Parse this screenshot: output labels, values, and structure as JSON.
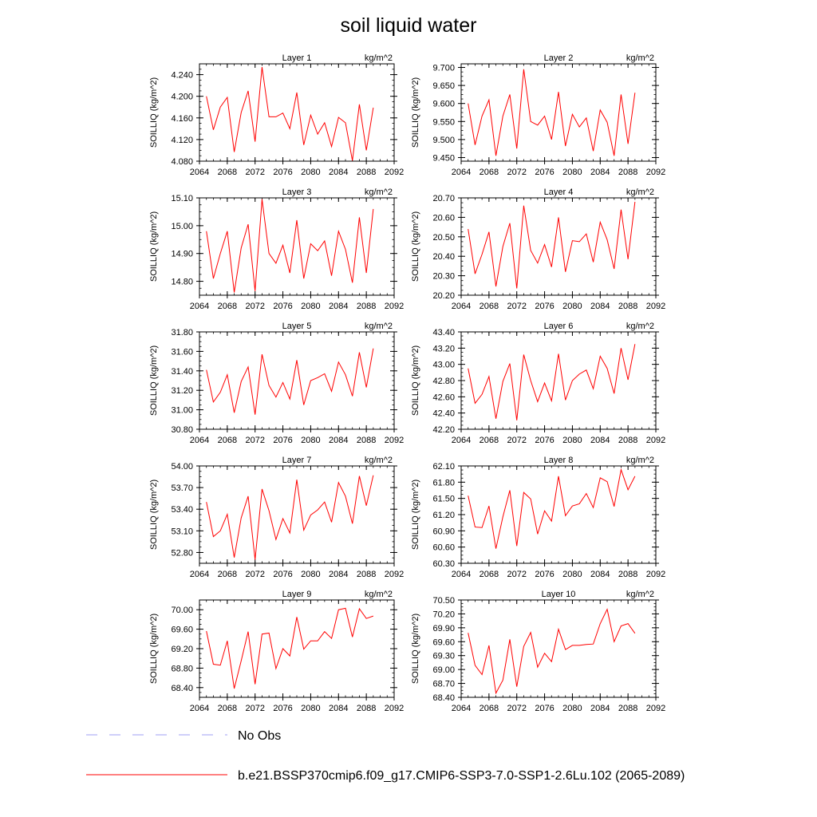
{
  "figure": {
    "title": "soil liquid water",
    "colors": {
      "model": "#ff0000",
      "obs": "#9f9ff5",
      "axis": "#000000"
    }
  },
  "legend": {
    "obs_label": "No Obs",
    "model_label": "b.e21.BSSP370cmip6.f09_g17.CMIP6-SSP3-7.0-SSP1-2.6Lu.102 (2065-2089)"
  },
  "chart_data": [
    {
      "type": "line",
      "title": "Layer 1",
      "units": "kg/m^2",
      "ylabel": "SOILLIQ  (kg/m^2)",
      "xlim": [
        2064,
        2092
      ],
      "x_ticks": [
        "2064",
        "2068",
        "2072",
        "2076",
        "2080",
        "2084",
        "2088",
        "2092"
      ],
      "ylim": [
        4.08,
        4.26
      ],
      "y_ticks": [
        "4.080",
        "4.120",
        "4.160",
        "4.200",
        "4.240"
      ],
      "series": [
        {
          "x": [
            2065,
            2066,
            2067,
            2068,
            2069,
            2070,
            2071,
            2072,
            2073,
            2074,
            2075,
            2076,
            2077,
            2078,
            2079,
            2080,
            2081,
            2082,
            2083,
            2084,
            2085,
            2086,
            2087,
            2088,
            2089
          ],
          "values": [
            4.2,
            4.138,
            4.18,
            4.198,
            4.097,
            4.17,
            4.21,
            4.116,
            4.254,
            4.162,
            4.162,
            4.169,
            4.14,
            4.207,
            4.11,
            4.165,
            4.13,
            4.151,
            4.107,
            4.161,
            4.151,
            4.081,
            4.185,
            4.1,
            4.179
          ]
        }
      ]
    },
    {
      "type": "line",
      "title": "Layer 2",
      "units": "kg/m^2",
      "ylabel": "SOILLIQ  (kg/m^2)",
      "xlim": [
        2064,
        2092
      ],
      "x_ticks": [
        "2064",
        "2068",
        "2072",
        "2076",
        "2080",
        "2084",
        "2088",
        "2092"
      ],
      "ylim": [
        9.44,
        9.71
      ],
      "y_ticks": [
        "9.450",
        "9.500",
        "9.550",
        "9.600",
        "9.650",
        "9.700"
      ],
      "series": [
        {
          "x": [
            2065,
            2066,
            2067,
            2068,
            2069,
            2070,
            2071,
            2072,
            2073,
            2074,
            2075,
            2076,
            2077,
            2078,
            2079,
            2080,
            2081,
            2082,
            2083,
            2084,
            2085,
            2086,
            2087,
            2088,
            2089
          ],
          "values": [
            9.6,
            9.485,
            9.565,
            9.61,
            9.455,
            9.565,
            9.625,
            9.475,
            9.695,
            9.55,
            9.54,
            9.565,
            9.5,
            9.632,
            9.482,
            9.57,
            9.535,
            9.56,
            9.468,
            9.582,
            9.548,
            9.455,
            9.625,
            9.488,
            9.63
          ]
        }
      ]
    },
    {
      "type": "line",
      "title": "Layer 3",
      "units": "kg/m^2",
      "ylabel": "SOILLIQ  (kg/m^2)",
      "xlim": [
        2064,
        2092
      ],
      "x_ticks": [
        "2064",
        "2068",
        "2072",
        "2076",
        "2080",
        "2084",
        "2088",
        "2092"
      ],
      "ylim": [
        14.75,
        15.1
      ],
      "y_ticks": [
        "14.80",
        "14.90",
        "15.00",
        "15.10"
      ],
      "series": [
        {
          "x": [
            2065,
            2066,
            2067,
            2068,
            2069,
            2070,
            2071,
            2072,
            2073,
            2074,
            2075,
            2076,
            2077,
            2078,
            2079,
            2080,
            2081,
            2082,
            2083,
            2084,
            2085,
            2086,
            2087,
            2088,
            2089
          ],
          "values": [
            14.98,
            14.81,
            14.9,
            14.98,
            14.76,
            14.92,
            15.005,
            14.765,
            15.095,
            14.9,
            14.865,
            14.93,
            14.83,
            15.02,
            14.81,
            14.935,
            14.91,
            14.945,
            14.82,
            14.98,
            14.915,
            14.795,
            15.03,
            14.83,
            15.06
          ]
        }
      ]
    },
    {
      "type": "line",
      "title": "Layer 4",
      "units": "kg/m^2",
      "ylabel": "SOILLIQ  (kg/m^2)",
      "xlim": [
        2064,
        2092
      ],
      "x_ticks": [
        "2064",
        "2068",
        "2072",
        "2076",
        "2080",
        "2084",
        "2088",
        "2092"
      ],
      "ylim": [
        20.2,
        20.7
      ],
      "y_ticks": [
        "20.20",
        "20.30",
        "20.40",
        "20.50",
        "20.60",
        "20.70"
      ],
      "series": [
        {
          "x": [
            2065,
            2066,
            2067,
            2068,
            2069,
            2070,
            2071,
            2072,
            2073,
            2074,
            2075,
            2076,
            2077,
            2078,
            2079,
            2080,
            2081,
            2082,
            2083,
            2084,
            2085,
            2086,
            2087,
            2088,
            2089
          ],
          "values": [
            20.54,
            20.31,
            20.41,
            20.525,
            20.245,
            20.45,
            20.57,
            20.235,
            20.66,
            20.43,
            20.365,
            20.46,
            20.345,
            20.6,
            20.32,
            20.48,
            20.475,
            20.515,
            20.37,
            20.575,
            20.485,
            20.335,
            20.64,
            20.385,
            20.68
          ]
        }
      ]
    },
    {
      "type": "line",
      "title": "Layer 5",
      "units": "kg/m^2",
      "ylabel": "SOILLIQ  (kg/m^2)",
      "xlim": [
        2064,
        2092
      ],
      "x_ticks": [
        "2064",
        "2068",
        "2072",
        "2076",
        "2080",
        "2084",
        "2088",
        "2092"
      ],
      "ylim": [
        30.8,
        31.8
      ],
      "y_ticks": [
        "30.80",
        "31.00",
        "31.20",
        "31.40",
        "31.60",
        "31.80"
      ],
      "series": [
        {
          "x": [
            2065,
            2066,
            2067,
            2068,
            2069,
            2070,
            2071,
            2072,
            2073,
            2074,
            2075,
            2076,
            2077,
            2078,
            2079,
            2080,
            2081,
            2082,
            2083,
            2084,
            2085,
            2086,
            2087,
            2088,
            2089
          ],
          "values": [
            31.41,
            31.08,
            31.18,
            31.36,
            30.97,
            31.29,
            31.44,
            30.95,
            31.57,
            31.25,
            31.13,
            31.28,
            31.11,
            31.51,
            31.05,
            31.3,
            31.33,
            31.37,
            31.19,
            31.49,
            31.36,
            31.14,
            31.59,
            31.23,
            31.63
          ]
        }
      ]
    },
    {
      "type": "line",
      "title": "Layer 6",
      "units": "kg/m^2",
      "ylabel": "SOILLIQ  (kg/m^2)",
      "xlim": [
        2064,
        2092
      ],
      "x_ticks": [
        "2064",
        "2068",
        "2072",
        "2076",
        "2080",
        "2084",
        "2088",
        "2092"
      ],
      "ylim": [
        42.2,
        43.4
      ],
      "y_ticks": [
        "42.20",
        "42.40",
        "42.60",
        "42.80",
        "43.00",
        "43.20",
        "43.40"
      ],
      "series": [
        {
          "x": [
            2065,
            2066,
            2067,
            2068,
            2069,
            2070,
            2071,
            2072,
            2073,
            2074,
            2075,
            2076,
            2077,
            2078,
            2079,
            2080,
            2081,
            2082,
            2083,
            2084,
            2085,
            2086,
            2087,
            2088,
            2089
          ],
          "values": [
            42.95,
            42.52,
            42.63,
            42.85,
            42.33,
            42.79,
            43.01,
            42.31,
            43.12,
            42.8,
            42.54,
            42.77,
            42.55,
            43.13,
            42.56,
            42.8,
            42.88,
            42.93,
            42.7,
            43.1,
            42.95,
            42.64,
            43.2,
            42.81,
            43.25
          ]
        }
      ]
    },
    {
      "type": "line",
      "title": "Layer 7",
      "units": "kg/m^2",
      "ylabel": "SOILLIQ  (kg/m^2)",
      "xlim": [
        2064,
        2092
      ],
      "x_ticks": [
        "2064",
        "2068",
        "2072",
        "2076",
        "2080",
        "2084",
        "2088",
        "2092"
      ],
      "ylim": [
        52.65,
        54.0
      ],
      "y_ticks": [
        "52.80",
        "53.10",
        "53.40",
        "53.70",
        "54.00"
      ],
      "series": [
        {
          "x": [
            2065,
            2066,
            2067,
            2068,
            2069,
            2070,
            2071,
            2072,
            2073,
            2074,
            2075,
            2076,
            2077,
            2078,
            2079,
            2080,
            2081,
            2082,
            2083,
            2084,
            2085,
            2086,
            2087,
            2088,
            2089
          ],
          "values": [
            53.5,
            53.02,
            53.1,
            53.33,
            52.73,
            53.28,
            53.58,
            52.7,
            53.68,
            53.38,
            52.98,
            53.27,
            53.07,
            53.81,
            53.11,
            53.32,
            53.39,
            53.5,
            53.22,
            53.77,
            53.58,
            53.2,
            53.86,
            53.45,
            53.87
          ]
        }
      ]
    },
    {
      "type": "line",
      "title": "Layer 8",
      "units": "kg/m^2",
      "ylabel": "SOILLIQ  (kg/m^2)",
      "xlim": [
        2064,
        2092
      ],
      "x_ticks": [
        "2064",
        "2068",
        "2072",
        "2076",
        "2080",
        "2084",
        "2088",
        "2092"
      ],
      "ylim": [
        60.3,
        62.1
      ],
      "y_ticks": [
        "60.30",
        "60.60",
        "60.90",
        "61.20",
        "61.50",
        "61.80",
        "62.10"
      ],
      "series": [
        {
          "x": [
            2065,
            2066,
            2067,
            2068,
            2069,
            2070,
            2071,
            2072,
            2073,
            2074,
            2075,
            2076,
            2077,
            2078,
            2079,
            2080,
            2081,
            2082,
            2083,
            2084,
            2085,
            2086,
            2087,
            2088,
            2089
          ],
          "values": [
            61.55,
            60.97,
            60.96,
            61.36,
            60.57,
            61.16,
            61.65,
            60.62,
            61.61,
            61.49,
            60.84,
            61.27,
            61.08,
            61.91,
            61.18,
            61.36,
            61.4,
            61.59,
            61.33,
            61.88,
            61.81,
            61.35,
            62.03,
            61.66,
            61.91
          ]
        }
      ]
    },
    {
      "type": "line",
      "title": "Layer 9",
      "units": "kg/m^2",
      "ylabel": "SOILLIQ  (kg/m^2)",
      "xlim": [
        2064,
        2092
      ],
      "x_ticks": [
        "2064",
        "2068",
        "2072",
        "2076",
        "2080",
        "2084",
        "2088",
        "2092"
      ],
      "ylim": [
        68.2,
        70.2
      ],
      "y_ticks": [
        "68.40",
        "68.80",
        "69.20",
        "69.60",
        "70.00"
      ],
      "series": [
        {
          "x": [
            2065,
            2066,
            2067,
            2068,
            2069,
            2070,
            2071,
            2072,
            2073,
            2074,
            2075,
            2076,
            2077,
            2078,
            2079,
            2080,
            2081,
            2082,
            2083,
            2084,
            2085,
            2086,
            2087,
            2088,
            2089
          ],
          "values": [
            69.56,
            68.88,
            68.86,
            69.36,
            68.38,
            68.95,
            69.55,
            68.47,
            69.5,
            69.52,
            68.79,
            69.2,
            69.05,
            69.85,
            69.19,
            69.36,
            69.36,
            69.55,
            69.41,
            70.0,
            70.03,
            69.44,
            70.02,
            69.82,
            69.87
          ]
        }
      ]
    },
    {
      "type": "line",
      "title": "Layer 10",
      "units": "kg/m^2",
      "ylabel": "SOILLIQ  (kg/m^2)",
      "xlim": [
        2064,
        2092
      ],
      "x_ticks": [
        "2064",
        "2068",
        "2072",
        "2076",
        "2080",
        "2084",
        "2088",
        "2092"
      ],
      "ylim": [
        68.4,
        70.5
      ],
      "y_ticks": [
        "68.40",
        "68.70",
        "69.00",
        "69.30",
        "69.60",
        "69.90",
        "70.20",
        "70.50"
      ],
      "series": [
        {
          "x": [
            2065,
            2066,
            2067,
            2068,
            2069,
            2070,
            2071,
            2072,
            2073,
            2074,
            2075,
            2076,
            2077,
            2078,
            2079,
            2080,
            2081,
            2082,
            2083,
            2084,
            2085,
            2086,
            2087,
            2088,
            2089
          ],
          "values": [
            69.79,
            69.09,
            68.89,
            69.52,
            68.49,
            68.77,
            69.65,
            68.63,
            69.5,
            69.8,
            69.05,
            69.35,
            69.17,
            69.87,
            69.43,
            69.52,
            69.52,
            69.54,
            69.55,
            69.99,
            70.3,
            69.6,
            69.94,
            69.99,
            69.78
          ]
        }
      ]
    }
  ]
}
